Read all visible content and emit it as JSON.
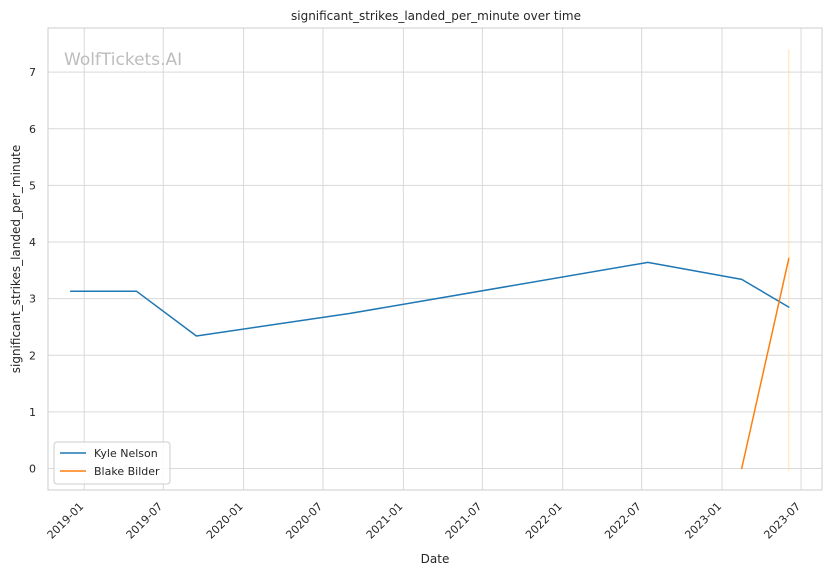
{
  "chart_data": {
    "type": "line",
    "title": "significant_strikes_landed_per_minute over time",
    "xlabel": "Date",
    "ylabel": "significant_strikes_landed_per_minute",
    "watermark": "WolfTickets.AI",
    "x_ticks": [
      "2019-01",
      "2019-07",
      "2020-01",
      "2020-07",
      "2021-01",
      "2021-07",
      "2022-01",
      "2022-07",
      "2023-01",
      "2023-07"
    ],
    "y_ticks": [
      0,
      1,
      2,
      3,
      4,
      5,
      6,
      7
    ],
    "xlim": [
      "2018-10-10",
      "2023-08-18"
    ],
    "ylim": [
      -0.38,
      7.78
    ],
    "grid": true,
    "legend_position": "lower-left",
    "colors": {
      "Kyle Nelson": "#1f77b4",
      "Blake Bilder": "#ff7f0e",
      "vline": "#ffe0b2"
    },
    "series": [
      {
        "name": "Kyle Nelson",
        "points": [
          {
            "x": "2018-12-01",
            "y": 3.13
          },
          {
            "x": "2019-05-01",
            "y": 3.13
          },
          {
            "x": "2019-09-15",
            "y": 2.34
          },
          {
            "x": "2020-09-01",
            "y": 2.74
          },
          {
            "x": "2022-07-15",
            "y": 3.64
          },
          {
            "x": "2023-02-15",
            "y": 3.34
          },
          {
            "x": "2023-06-03",
            "y": 2.85
          }
        ]
      },
      {
        "name": "Blake Bilder",
        "points": [
          {
            "x": "2023-02-15",
            "y": 0.0
          },
          {
            "x": "2023-06-03",
            "y": 3.71
          }
        ]
      }
    ],
    "vline": {
      "x": "2023-06-03",
      "y_range": [
        -0.05,
        7.4
      ]
    }
  }
}
